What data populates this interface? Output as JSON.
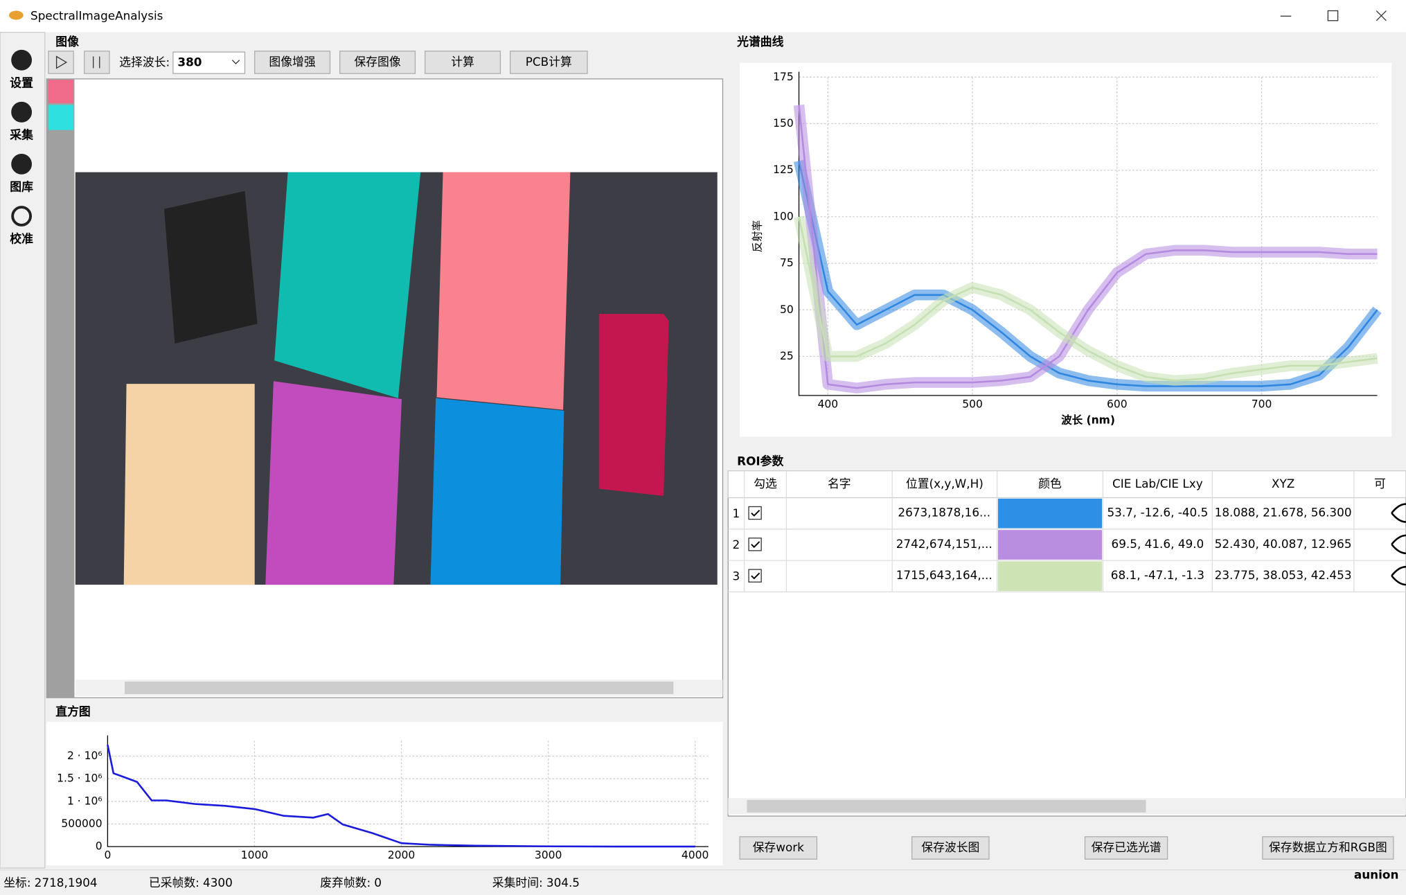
{
  "window": {
    "title": "SpectralImageAnalysis"
  },
  "sidebar": {
    "items": [
      "设置",
      "采集",
      "图库",
      "校准"
    ]
  },
  "image_panel": {
    "title": "图像",
    "toolbar": {
      "wavelength_label": "选择波长:",
      "wavelength_value": "380",
      "buttons": [
        "图像增强",
        "保存图像",
        "计算",
        "PCB计算"
      ]
    }
  },
  "spectrum_panel": {
    "title": "光谱曲线",
    "chart": {
      "type": "line",
      "xlabel": "波长 (nm)",
      "ylabel": "反射率",
      "x": [
        380,
        400,
        420,
        440,
        460,
        480,
        500,
        520,
        540,
        560,
        580,
        600,
        620,
        640,
        660,
        680,
        700,
        720,
        740,
        760,
        780
      ],
      "xlim": [
        380,
        780
      ],
      "ylim": [
        4,
        175
      ],
      "xticks": [
        400,
        500,
        600,
        700
      ],
      "yticks": [
        25,
        50,
        75,
        100,
        125,
        150,
        175
      ],
      "grid": true,
      "series": [
        {
          "name": "1",
          "color": "#2e86e0",
          "values": [
            130,
            60,
            42,
            50,
            58,
            58,
            50,
            38,
            25,
            16,
            12,
            10,
            9,
            9,
            9,
            9,
            9,
            10,
            15,
            30,
            50
          ]
        },
        {
          "name": "2",
          "color": "#b48be0",
          "values": [
            160,
            10,
            8,
            10,
            11,
            11,
            11,
            12,
            14,
            25,
            50,
            70,
            80,
            82,
            82,
            81,
            81,
            81,
            81,
            80,
            80
          ]
        },
        {
          "name": "3",
          "color": "#c5e0b0",
          "values": [
            100,
            25,
            25,
            32,
            42,
            55,
            62,
            58,
            50,
            38,
            28,
            20,
            14,
            12,
            13,
            16,
            18,
            20,
            20,
            22,
            24
          ]
        }
      ]
    }
  },
  "histogram_panel": {
    "title": "直方图",
    "chart": {
      "type": "line",
      "x": [
        0,
        40,
        100,
        200,
        300,
        400,
        600,
        800,
        1000,
        1200,
        1400,
        1500,
        1600,
        1800,
        2000,
        2200,
        2500,
        3000,
        3500,
        4000
      ],
      "xlim": [
        0,
        4090
      ],
      "ylim": [
        0,
        2340000
      ],
      "xticks": [
        0,
        1000,
        2000,
        3000,
        4000
      ],
      "yticks": [
        0,
        500000,
        {
          "value": 1000000,
          "label": "1 · 10⁶"
        },
        {
          "value": 1500000,
          "label": "1.5 · 10⁶"
        },
        {
          "value": 2000000,
          "label": "2 · 10⁶"
        }
      ],
      "grid": true,
      "series": [
        {
          "color": "#1a1adc",
          "values": [
            2250000,
            1620000,
            1550000,
            1430000,
            1020000,
            1020000,
            940000,
            900000,
            830000,
            680000,
            640000,
            720000,
            490000,
            300000,
            75000,
            40000,
            20000,
            5000,
            0,
            0
          ]
        }
      ]
    }
  },
  "roi_panel": {
    "title": "ROI参数",
    "table": {
      "headers": [
        "勾选",
        "名字",
        "位置(x,y,W,H)",
        "颜色",
        "CIE Lab/CIE Lxy",
        "XYZ",
        "可"
      ],
      "rows": [
        {
          "index": 1,
          "checked": true,
          "position": "2673,1878,16...",
          "color": "#2e8fe6",
          "lab": "53.7, -12.6, -40.5",
          "xyz": "18.088, 21.678, 56.300"
        },
        {
          "index": 2,
          "checked": true,
          "position": "2742,674,151,...",
          "color": "#b98ee0",
          "lab": "69.5, 41.6, 49.0",
          "xyz": "52.430, 40.087, 12.965"
        },
        {
          "index": 3,
          "checked": true,
          "position": "1715,643,164,...",
          "color": "#cde3b4",
          "lab": "68.1, -47.1, -1.3",
          "xyz": "23.775, 38.053, 42.453"
        }
      ]
    }
  },
  "buttons": [
    "保存work",
    "保存波长图",
    "保存已选光谱",
    "保存数据立方和RGB图"
  ],
  "status_bar": [
    {
      "label": "坐标:",
      "value": "2718,1904"
    },
    {
      "label": "已采帧数:",
      "value": "4300"
    },
    {
      "label": "废弃帧数:",
      "value": "0"
    },
    {
      "label": "采集时间:",
      "value": "304.5"
    }
  ],
  "watermark": "aunion"
}
